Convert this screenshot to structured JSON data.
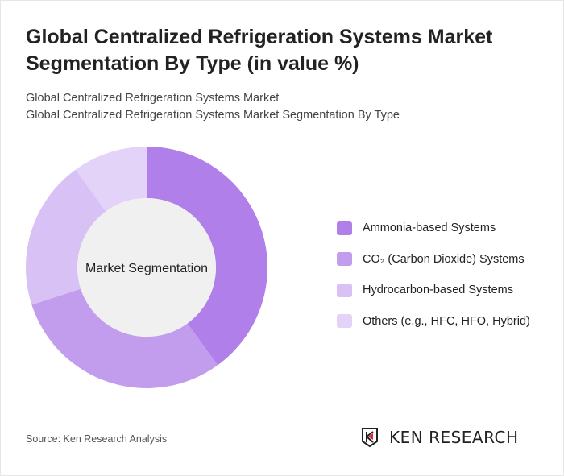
{
  "title": "Global Centralized Refrigeration Systems Market Segmentation By Type (in value %)",
  "subtitle_1": "Global Centralized Refrigeration Systems Market",
  "subtitle_2": "Global Centralized Refrigeration Systems Market Segmentation By Type",
  "source": "Source: Ken Research Analysis",
  "logo_text": "KEN RESEARCH",
  "chart_data": {
    "type": "pie",
    "variant": "donut",
    "center_label": "Market Segmentation",
    "categories": [
      "Ammonia-based Systems",
      "CO₂ (Carbon Dioxide) Systems",
      "Hydrocarbon-based Systems",
      "Others (e.g., HFC, HFO, Hybrid)"
    ],
    "values": [
      40,
      30,
      20,
      10
    ],
    "colors": [
      "#b07fe9",
      "#c39ded",
      "#d8c1f5",
      "#e3d3f8"
    ],
    "legend_position": "right"
  }
}
